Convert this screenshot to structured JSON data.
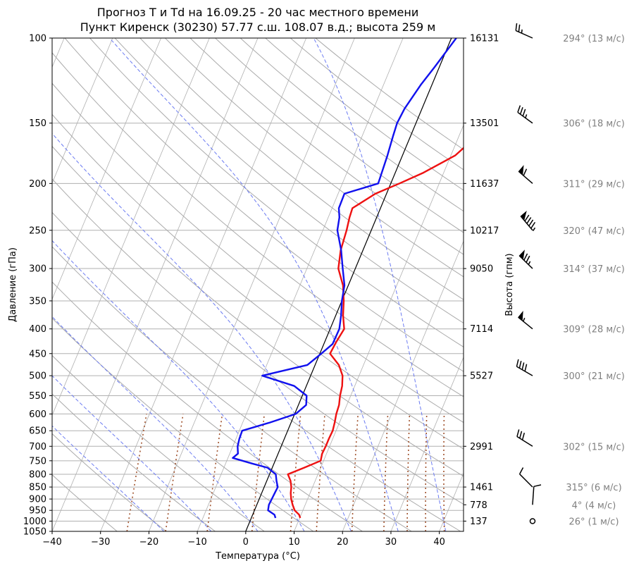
{
  "chart_data": {
    "type": "skew-t",
    "title": "Прогноз T и Td на 16.09.25 - 20 час местного времени",
    "subtitle": "Пункт Киренск (30230) 57.77 с.ш. 108.07 в.д.; высота 259 м",
    "xlabel": "Температура (°C)",
    "ylabel": "Давление (гПа)",
    "y2label": "Высота (гпм)",
    "xlim": [
      -40,
      45
    ],
    "ylim": [
      1050,
      100
    ],
    "y_scale": "log",
    "x_ticks": [
      "−40",
      "−30",
      "−20",
      "−10",
      "0",
      "10",
      "20",
      "30",
      "40"
    ],
    "pressure_ticks": [
      100,
      150,
      200,
      250,
      300,
      350,
      400,
      450,
      500,
      550,
      600,
      650,
      700,
      750,
      800,
      850,
      900,
      950,
      1000,
      1050
    ],
    "height_ticks": [
      {
        "p": 100,
        "label": "16131"
      },
      {
        "p": 150,
        "label": "13501"
      },
      {
        "p": 200,
        "label": "11637"
      },
      {
        "p": 250,
        "label": "10217"
      },
      {
        "p": 300,
        "label": "9050"
      },
      {
        "p": 400,
        "label": "7114"
      },
      {
        "p": 500,
        "label": "5527"
      },
      {
        "p": 700,
        "label": "2991"
      },
      {
        "p": 850,
        "label": "1461"
      },
      {
        "p": 925,
        "label": "778"
      },
      {
        "p": 1000,
        "label": "137"
      }
    ],
    "series": [
      {
        "color": "#ee1111",
        "points": [
          [
            985,
            10.1
          ],
          [
            970,
            9.6
          ],
          [
            950,
            8.3
          ],
          [
            925,
            7.4
          ],
          [
            900,
            6.6
          ],
          [
            875,
            6.0
          ],
          [
            850,
            5.6
          ],
          [
            825,
            4.9
          ],
          [
            800,
            3.8
          ],
          [
            775,
            6.6
          ],
          [
            750,
            9.4
          ],
          [
            725,
            9.1
          ],
          [
            700,
            9.2
          ],
          [
            675,
            9.2
          ],
          [
            650,
            9.3
          ],
          [
            625,
            9.0
          ],
          [
            600,
            8.6
          ],
          [
            575,
            8.4
          ],
          [
            550,
            7.8
          ],
          [
            525,
            7.4
          ],
          [
            500,
            6.6
          ],
          [
            475,
            4.9
          ],
          [
            450,
            2.1
          ],
          [
            425,
            2.4
          ],
          [
            400,
            2.9
          ],
          [
            375,
            1.5
          ],
          [
            350,
            0.4
          ],
          [
            325,
            -1.1
          ],
          [
            300,
            -3.5
          ],
          [
            275,
            -4.6
          ],
          [
            250,
            -5.1
          ],
          [
            235,
            -5.6
          ],
          [
            225,
            -5.8
          ],
          [
            210,
            -2.3
          ],
          [
            200,
            1.8
          ],
          [
            190,
            5.8
          ],
          [
            175,
            10.9
          ],
          [
            160,
            13.6
          ],
          [
            150,
            17.7
          ],
          [
            140,
            21.1
          ],
          [
            125,
            27.0
          ],
          [
            115,
            29.4
          ],
          [
            110,
            31.9
          ],
          [
            100,
            35.2
          ]
        ]
      },
      {
        "color": "#1111ee",
        "points": [
          [
            985,
            5.0
          ],
          [
            970,
            4.5
          ],
          [
            950,
            2.8
          ],
          [
            925,
            2.5
          ],
          [
            900,
            2.6
          ],
          [
            875,
            2.7
          ],
          [
            850,
            2.8
          ],
          [
            825,
            2.0
          ],
          [
            800,
            1.3
          ],
          [
            775,
            -1.0
          ],
          [
            760,
            -4.5
          ],
          [
            740,
            -9.0
          ],
          [
            725,
            -8.3
          ],
          [
            700,
            -9.0
          ],
          [
            675,
            -9.3
          ],
          [
            650,
            -9.4
          ],
          [
            625,
            -4.4
          ],
          [
            600,
            0.2
          ],
          [
            575,
            1.6
          ],
          [
            550,
            0.9
          ],
          [
            525,
            -2.5
          ],
          [
            500,
            -10.0
          ],
          [
            475,
            -1.6
          ],
          [
            450,
            0.3
          ],
          [
            430,
            1.8
          ],
          [
            400,
            1.9
          ],
          [
            375,
            1.1
          ],
          [
            350,
            0.0
          ],
          [
            325,
            -0.8
          ],
          [
            300,
            -2.6
          ],
          [
            275,
            -4.5
          ],
          [
            250,
            -7.0
          ],
          [
            235,
            -7.7
          ],
          [
            225,
            -8.6
          ],
          [
            210,
            -8.7
          ],
          [
            200,
            -2.6
          ],
          [
            190,
            -2.8
          ],
          [
            175,
            -3.1
          ],
          [
            160,
            -3.6
          ],
          [
            150,
            -3.9
          ],
          [
            140,
            -3.6
          ],
          [
            125,
            -2.3
          ],
          [
            115,
            -1.0
          ],
          [
            100,
            1.0
          ]
        ]
      }
    ],
    "wind_barbs": [
      {
        "p": 100,
        "label": "294° (13 м/с)",
        "speed": 13,
        "direction": 294
      },
      {
        "p": 150,
        "label": "306° (18 м/с)",
        "speed": 18,
        "direction": 306
      },
      {
        "p": 200,
        "label": "311° (29 м/с)",
        "speed": 29,
        "direction": 311
      },
      {
        "p": 250,
        "label": "320° (47 м/с)",
        "speed": 47,
        "direction": 320
      },
      {
        "p": 300,
        "label": "314° (37 м/с)",
        "speed": 37,
        "direction": 314
      },
      {
        "p": 400,
        "label": "309° (28 м/с)",
        "speed": 28,
        "direction": 309
      },
      {
        "p": 500,
        "label": "300° (21 м/с)",
        "speed": 21,
        "direction": 300
      },
      {
        "p": 700,
        "label": "302° (15 м/с)",
        "speed": 15,
        "direction": 302
      },
      {
        "p": 850,
        "label": "315° (6 м/с)",
        "speed": 6,
        "direction": 315
      },
      {
        "p": 925,
        "label": "4° (4 м/с)",
        "speed": 4,
        "direction": 4
      },
      {
        "p": 1000,
        "label": "26° (1 м/с)",
        "speed": 1,
        "direction": 26
      }
    ],
    "grid": true,
    "colors": {
      "temperature": "#ee1111",
      "dewpoint": "#1111ee",
      "dry_adiabats": "#aaaaaa",
      "moist_adiabats": "#6b7bf2",
      "mixing_ratio": "#a0522d",
      "zero_isotherm": "#000000",
      "wind_labels": "#808080"
    }
  }
}
